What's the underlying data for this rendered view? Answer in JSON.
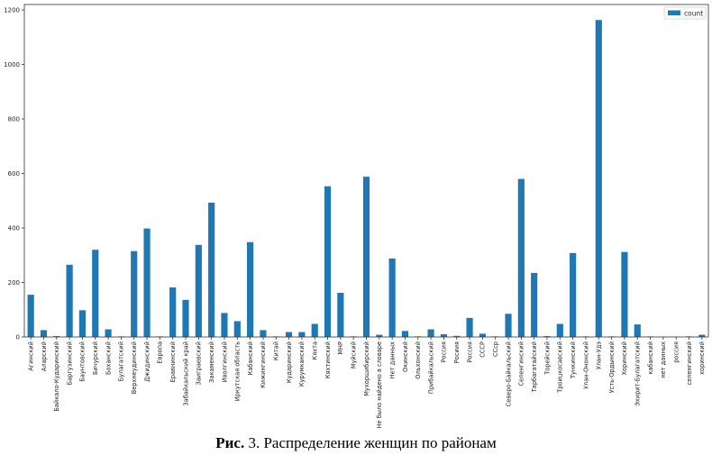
{
  "chart_data": {
    "type": "bar",
    "title": "",
    "xlabel": "",
    "ylabel": "",
    "ylim": [
      0,
      1220
    ],
    "yticks": [
      0,
      200,
      400,
      600,
      800,
      1000,
      1200
    ],
    "legend": {
      "position": "top-right",
      "entries": [
        "count"
      ]
    },
    "color": "#1f77b4",
    "categories": [
      "Агинский",
      "Аларский",
      "Байкало-Кударинский",
      "Баргузинский",
      "Баунтовский",
      "Бичурский",
      "Боханский",
      "Булагатский",
      "Верхнеудинский",
      "Джидинский",
      "Европа",
      "Еравнинский",
      "Забайкальский край",
      "Заиграевский",
      "Закаменский",
      "Иволгинский",
      "Иркутская область",
      "Кабанский",
      "Кижингинский",
      "Китай",
      "Кударинский",
      "Курумканский",
      "Кяхта",
      "Кяхтинский",
      "МНР",
      "Муйский",
      "Мухоршибирский",
      "Не было найдено в словаре",
      "Нет данных",
      "Окинский",
      "Ольхонский",
      "Прибайкальский",
      "Россия",
      "Росиия",
      "Россия",
      "СССР",
      "ССср",
      "Северо-Байкальский",
      "Селенгинский",
      "Тарбагатайский",
      "Торейский",
      "Троицкосавский",
      "Тункинский",
      "Улан-Ононский",
      "Улан-Удэ",
      "Усть-Ордынский",
      "Хоринский",
      "Эхирит-Булагатский",
      "кабанский",
      "нет данных",
      "россия",
      "селенгинский",
      "хоринский"
    ],
    "series": [
      {
        "name": "count",
        "values": [
          155,
          25,
          3,
          265,
          98,
          320,
          28,
          2,
          315,
          398,
          2,
          182,
          136,
          338,
          493,
          88,
          58,
          348,
          25,
          2,
          18,
          18,
          48,
          553,
          162,
          2,
          588,
          8,
          288,
          22,
          2,
          28,
          10,
          4,
          70,
          12,
          2,
          85,
          580,
          235,
          3,
          48,
          308,
          2,
          1163,
          2,
          312,
          46,
          2,
          1,
          1,
          2,
          8
        ]
      }
    ]
  },
  "caption": {
    "prefix": "Рис.",
    "text": " 3. Распределение женщин по районам"
  }
}
